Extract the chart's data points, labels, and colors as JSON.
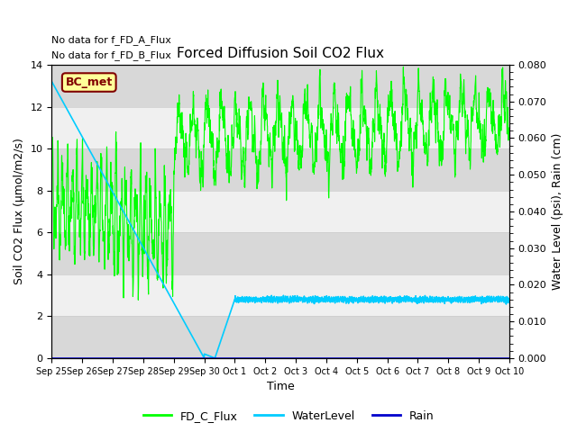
{
  "title": "Forced Diffusion Soil CO2 Flux",
  "xlabel": "Time",
  "ylabel_left": "Soil CO2 Flux (μmol/m2/s)",
  "ylabel_right": "Water Level (psi), Rain (cm)",
  "text_no_data_1": "No data for f_FD_A_Flux",
  "text_no_data_2": "No data for f_FD_B_Flux",
  "bc_met_label": "BC_met",
  "ylim_left": [
    0,
    14
  ],
  "ylim_right": [
    0,
    0.08
  ],
  "right_yticks": [
    0.0,
    0.01,
    0.02,
    0.03,
    0.04,
    0.05,
    0.06,
    0.07,
    0.08
  ],
  "left_yticks": [
    0,
    2,
    4,
    6,
    8,
    10,
    12,
    14
  ],
  "colors": {
    "FD_C_Flux": "#00FF00",
    "WaterLevel": "#00CCFF",
    "Rain": "#0000CC",
    "background": "#ffffff",
    "band_dark": "#d8d8d8",
    "band_light": "#f0f0f0",
    "bc_met_bg": "#ffff99",
    "bc_met_border": "#800000",
    "bc_met_text": "#800000"
  },
  "legend_labels": [
    "FD_C_Flux",
    "WaterLevel",
    "Rain"
  ],
  "x_tick_labels": [
    "Sep 25",
    "Sep 26",
    "Sep 27",
    "Sep 28",
    "Sep 29",
    "Sep 30",
    "Oct 1",
    "Oct 2",
    "Oct 3",
    "Oct 4",
    "Oct 5",
    "Oct 6",
    "Oct 7",
    "Oct 8",
    "Oct 9",
    "Oct 10"
  ]
}
